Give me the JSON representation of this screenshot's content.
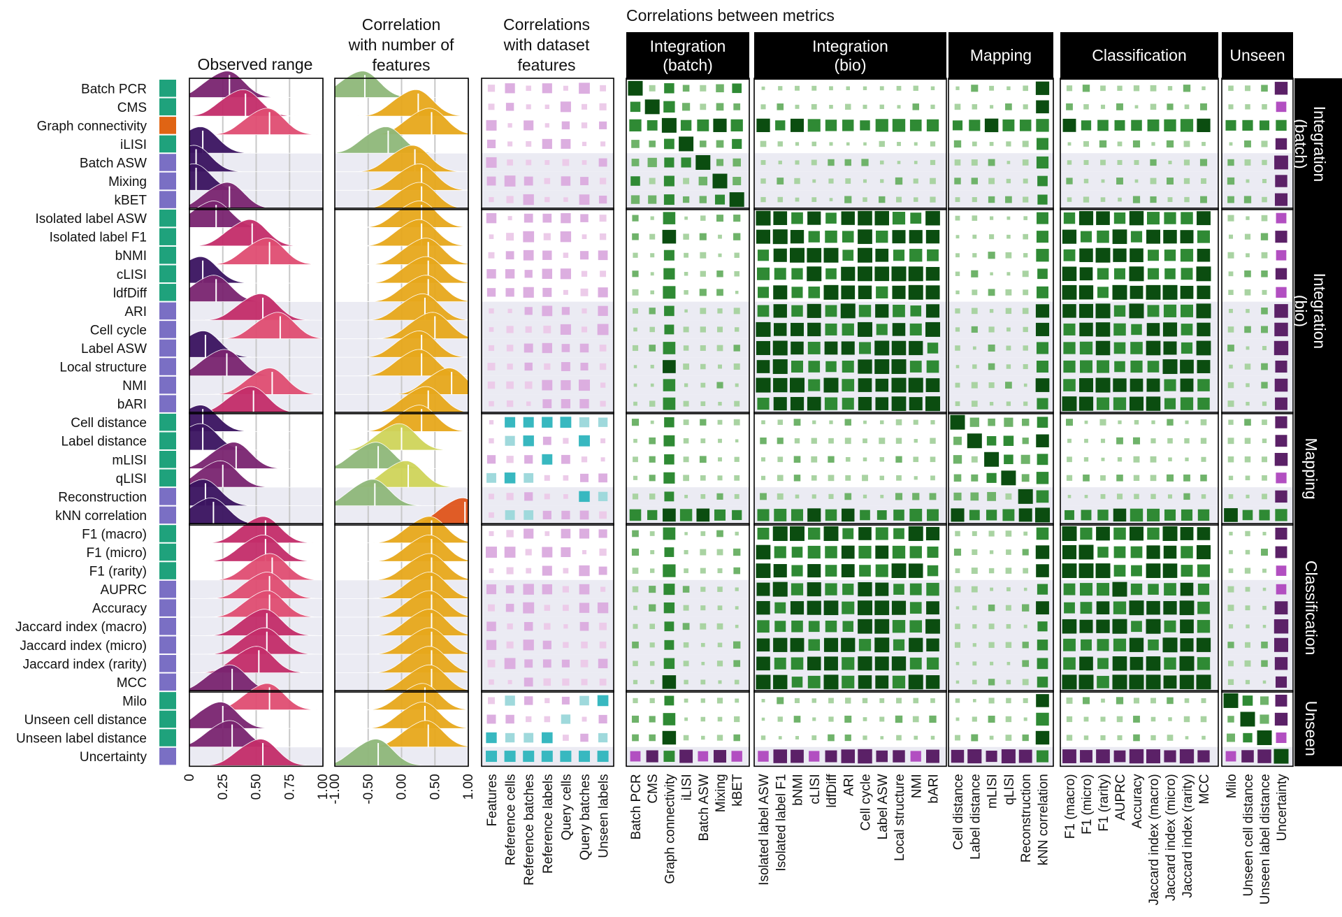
{
  "chart_data": {
    "type": "heatmap",
    "titles": {
      "observed_range": "Observed range",
      "corr_n_features": "Correlation with number of features",
      "corr_dataset": "Correlations with dataset features",
      "corr_metrics": "Correlations between metrics"
    },
    "range_ticks": [
      "0",
      "0.25",
      "0.50",
      "0.75",
      "1.00"
    ],
    "corr_ticks": [
      "-1.00",
      "-0.50",
      "0.00",
      "0.50",
      "1.00"
    ],
    "dataset_features": [
      "Features",
      "Reference cells",
      "Reference batches",
      "Reference labels",
      "Query cells",
      "Query batches",
      "Unseen labels"
    ],
    "categories": [
      {
        "name": "Integration (batch)",
        "group_label": [
          "Integration",
          "(batch)"
        ],
        "metrics": [
          "Batch PCR",
          "CMS",
          "Graph connectivity",
          "iLISI",
          "Batch ASW",
          "Mixing",
          "kBET"
        ]
      },
      {
        "name": "Integration (bio)",
        "group_label": [
          "Integration",
          "(bio)"
        ],
        "metrics": [
          "Isolated label ASW",
          "Isolated label F1",
          "bNMI",
          "cLISI",
          "ldfDiff",
          "ARI",
          "Cell cycle",
          "Label ASW",
          "Local structure",
          "NMI",
          "bARI"
        ]
      },
      {
        "name": "Mapping",
        "group_label": [
          "Mapping"
        ],
        "metrics": [
          "Cell distance",
          "Label distance",
          "mLISI",
          "qLISI",
          "Reconstruction",
          "kNN correlation"
        ]
      },
      {
        "name": "Classification",
        "group_label": [
          "Classification"
        ],
        "metrics": [
          "F1 (macro)",
          "F1 (micro)",
          "F1 (rarity)",
          "AUPRC",
          "Accuracy",
          "Jaccard index (macro)",
          "Jaccard index (micro)",
          "Jaccard index (rarity)",
          "MCC"
        ]
      },
      {
        "name": "Unseen",
        "group_label": [
          "Unseen"
        ],
        "metrics": [
          "Milo",
          "Unseen cell distance",
          "Unseen label distance",
          "Uncertainty"
        ]
      }
    ],
    "row_type_colors": {
      "teal": "#1fa27c",
      "blue": "#7a6fc4",
      "orange": "#e06414"
    },
    "row_types": [
      "teal",
      "teal",
      "orange",
      "teal",
      "blue",
      "blue",
      "blue",
      "teal",
      "teal",
      "teal",
      "teal",
      "teal",
      "blue",
      "blue",
      "blue",
      "blue",
      "blue",
      "blue",
      "teal",
      "teal",
      "teal",
      "teal",
      "blue",
      "blue",
      "teal",
      "teal",
      "teal",
      "blue",
      "blue",
      "blue",
      "blue",
      "blue",
      "blue",
      "teal",
      "teal",
      "teal",
      "blue"
    ],
    "observed_range_medians": [
      0.3,
      0.42,
      0.6,
      0.1,
      0.05,
      0.05,
      0.3,
      0.2,
      0.47,
      0.6,
      0.1,
      0.2,
      0.55,
      0.68,
      0.12,
      0.28,
      0.62,
      0.48,
      0.1,
      0.1,
      0.35,
      0.25,
      0.12,
      0.18,
      0.57,
      0.57,
      0.62,
      0.6,
      0.6,
      0.58,
      0.58,
      0.52,
      0.32,
      0.6,
      0.25,
      0.32,
      0.55
    ],
    "corr_n_features_medians": [
      -0.55,
      0.25,
      0.45,
      -0.2,
      0.2,
      0.3,
      0.3,
      0.3,
      0.3,
      0.4,
      0.4,
      0.4,
      0.35,
      0.5,
      0.3,
      0.3,
      0.75,
      0.4,
      0.3,
      0.0,
      -0.35,
      0.1,
      -0.4,
      0.95,
      0.45,
      0.45,
      0.45,
      0.45,
      0.45,
      0.45,
      0.45,
      0.45,
      0.45,
      0.35,
      0.35,
      0.4,
      -0.35
    ],
    "palette": {
      "dark_green": "#0b4d10",
      "mid_green": "#2f8a34",
      "pale_green": "#a9d3a2",
      "dark_purple": "#5b2167",
      "mid_purple": "#b24fc1",
      "pale_purple": "#dcaee0",
      "teal": "#38b8c0",
      "panel_bg": "#ebebf3",
      "header_bg": "#000000"
    }
  }
}
